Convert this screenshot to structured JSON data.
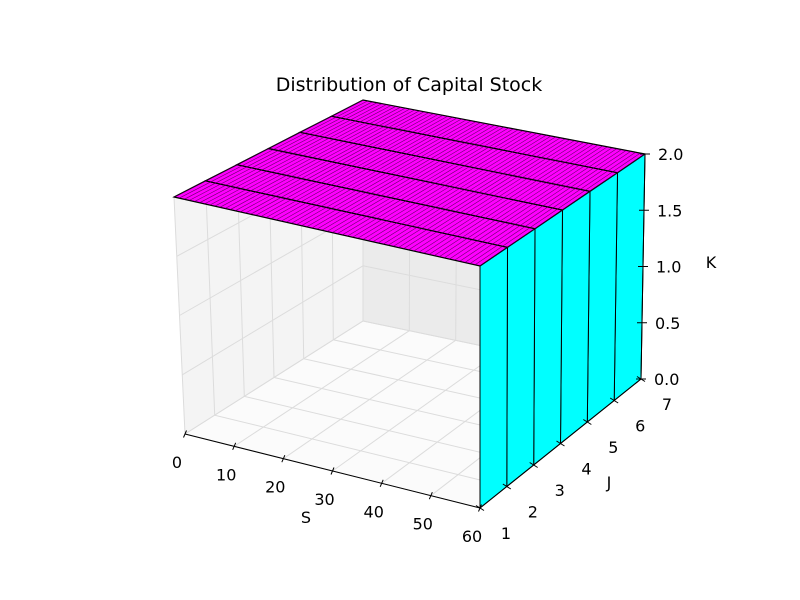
{
  "chart_data": {
    "type": "surface3d",
    "title": "Distribution of Capital Stock",
    "xlabel": "S",
    "ylabel": "J",
    "zlabel": "K",
    "x_ticks": [
      "0",
      "10",
      "20",
      "30",
      "40",
      "50",
      "60"
    ],
    "y_ticks": [
      "1",
      "2",
      "3",
      "4",
      "5",
      "6",
      "7"
    ],
    "z_ticks": [
      "0.0",
      "0.5",
      "1.0",
      "1.5",
      "2.0"
    ],
    "xlim": [
      0,
      60
    ],
    "ylim": [
      1,
      7
    ],
    "zlim": [
      0,
      2
    ],
    "surface_value": 2.0,
    "top_color": "#ff00ff",
    "side_color": "#00ffff",
    "grid": true
  }
}
